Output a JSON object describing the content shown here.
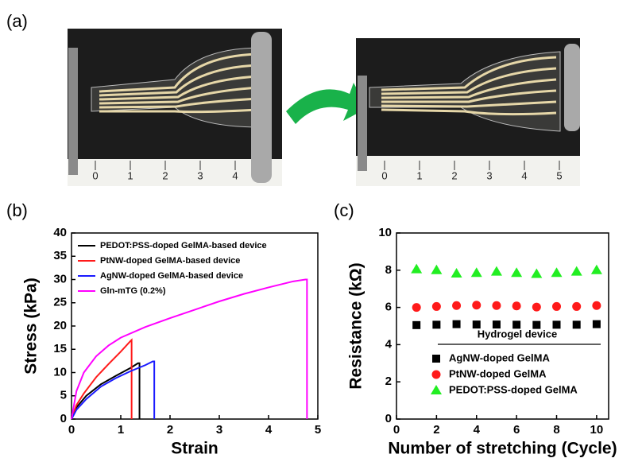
{
  "panel_labels": [
    "(a)",
    "(b)",
    "(c)"
  ],
  "photos": [
    {
      "ruler_labels": [
        "0",
        "1",
        "2",
        "3",
        "4"
      ]
    },
    {
      "ruler_labels": [
        "0",
        "1",
        "2",
        "3",
        "4",
        "5"
      ]
    }
  ],
  "chart_data": [
    {
      "type": "line",
      "xlabel": "Strain",
      "ylabel": "Stress (kPa)",
      "xlim": [
        0,
        5
      ],
      "xticks": [
        0,
        1,
        2,
        3,
        4,
        5
      ],
      "ylim": [
        0,
        40
      ],
      "yticks": [
        0,
        5,
        10,
        15,
        20,
        25,
        30,
        35,
        40
      ],
      "legend": "upper left",
      "series": [
        {
          "name": "PEDOT:PSS-doped GelMA-based device",
          "color": "#000000",
          "x": [
            0,
            0.1,
            0.3,
            0.6,
            0.9,
            1.2,
            1.35,
            1.38,
            1.38
          ],
          "values": [
            0,
            2.5,
            5,
            7.5,
            9.3,
            11,
            12,
            12,
            0
          ]
        },
        {
          "name": "PtNW-doped GelMA-based device",
          "color": "#ff1a1a",
          "x": [
            0,
            0.1,
            0.25,
            0.5,
            0.75,
            1,
            1.2,
            1.22,
            1.22
          ],
          "values": [
            0,
            3,
            5.5,
            9,
            11.8,
            14.5,
            16.8,
            17,
            0
          ]
        },
        {
          "name": "AgNW-doped GelMA-based device",
          "color": "#1a1aff",
          "x": [
            0,
            0.1,
            0.3,
            0.6,
            0.9,
            1.2,
            1.5,
            1.65,
            1.68,
            1.68
          ],
          "values": [
            0,
            2,
            4.3,
            7,
            8.8,
            10.3,
            11.6,
            12.4,
            12.4,
            0
          ]
        },
        {
          "name": "Gln-mTG (0.2%)",
          "color": "#ff00ff",
          "x": [
            0,
            0.1,
            0.25,
            0.5,
            0.75,
            1,
            1.5,
            2,
            2.5,
            3,
            3.5,
            4,
            4.5,
            4.75,
            4.78,
            4.78
          ],
          "values": [
            0,
            6,
            10,
            13.5,
            15.8,
            17.5,
            19.8,
            21.7,
            23.5,
            25.3,
            26.9,
            28.3,
            29.6,
            30,
            30,
            0
          ]
        }
      ]
    },
    {
      "type": "scatter",
      "xlabel": "Number of stretching (Cycle)",
      "ylabel": "Resistance (kΩ)",
      "xlim": [
        0,
        10.6
      ],
      "xticks": [
        0,
        2,
        4,
        6,
        8,
        10
      ],
      "ylim": [
        0,
        10
      ],
      "yticks": [
        0,
        2,
        4,
        6,
        8,
        10
      ],
      "legend": "lower right",
      "legend_title": "Hydrogel device",
      "x": [
        1,
        2,
        3,
        4,
        5,
        6,
        7,
        8,
        9,
        10
      ],
      "series": [
        {
          "name": "AgNW-doped GelMA",
          "color": "#000000",
          "marker": "square",
          "values": [
            5.05,
            5.07,
            5.1,
            5.08,
            5.08,
            5.07,
            5.06,
            5.07,
            5.07,
            5.1
          ]
        },
        {
          "name": "PtNW-doped GelMA",
          "color": "#ff1a1a",
          "marker": "circle",
          "values": [
            6,
            6.05,
            6.1,
            6.12,
            6.1,
            6.08,
            6.02,
            6.05,
            6.05,
            6.1
          ]
        },
        {
          "name": "PEDOT:PSS-doped GelMA",
          "color": "#22ee22",
          "marker": "triangle",
          "values": [
            8.05,
            8,
            7.82,
            7.85,
            7.92,
            7.85,
            7.8,
            7.85,
            7.92,
            8
          ]
        }
      ]
    }
  ]
}
